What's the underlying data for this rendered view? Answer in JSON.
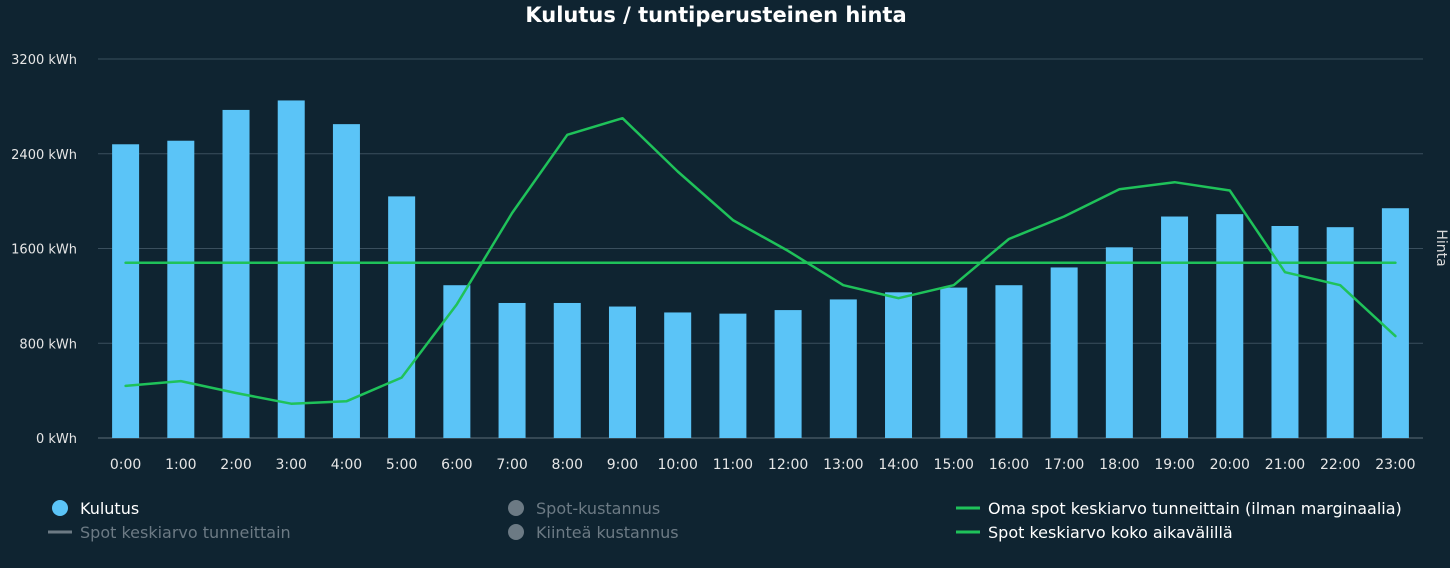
{
  "chart_data": {
    "type": "bar",
    "title": "Kulutus / tuntiperusteinen hinta",
    "xlabel": "",
    "ylabel": "",
    "y2label": "Hinta",
    "ylim": [
      0,
      3200
    ],
    "yticks": [
      0,
      800,
      1600,
      2400,
      3200
    ],
    "yticklabels": [
      "0 kWh",
      "800 kWh",
      "1600 kWh",
      "2400 kWh",
      "3200 kWh"
    ],
    "categories": [
      "0:00",
      "1:00",
      "2:00",
      "3:00",
      "4:00",
      "5:00",
      "6:00",
      "7:00",
      "8:00",
      "9:00",
      "10:00",
      "11:00",
      "12:00",
      "13:00",
      "14:00",
      "15:00",
      "16:00",
      "17:00",
      "18:00",
      "19:00",
      "20:00",
      "21:00",
      "22:00",
      "23:00"
    ],
    "series": [
      {
        "name": "Kulutus",
        "type": "bar",
        "color": "#5bc4f7",
        "values": [
          2480,
          2510,
          2770,
          2850,
          2650,
          2040,
          1290,
          1140,
          1140,
          1110,
          1060,
          1050,
          1080,
          1170,
          1230,
          1270,
          1290,
          1440,
          1610,
          1870,
          1890,
          1790,
          1780,
          1940
        ]
      },
      {
        "name": "Oma spot keskiarvo tunneittain (ilman marginaalia)",
        "type": "line",
        "color": "#1fc25a",
        "values": [
          440,
          480,
          380,
          290,
          310,
          510,
          1130,
          1900,
          2560,
          2700,
          2250,
          1840,
          1580,
          1290,
          1180,
          1290,
          1680,
          1870,
          2100,
          2160,
          2090,
          1400,
          1290,
          860
        ]
      },
      {
        "name": "Spot keskiarvo koko aikavälillä",
        "type": "line",
        "color": "#1fc25a",
        "values": [
          1480,
          1480,
          1480,
          1480,
          1480,
          1480,
          1480,
          1480,
          1480,
          1480,
          1480,
          1480,
          1480,
          1480,
          1480,
          1480,
          1480,
          1480,
          1480,
          1480,
          1480,
          1480,
          1480,
          1480
        ]
      }
    ],
    "legend": [
      {
        "label": "Kulutus",
        "symbol": "circle",
        "color": "#5bc4f7",
        "active": true
      },
      {
        "label": "Spot keskiarvo tunneittain",
        "symbol": "line",
        "color": "#6c7a84",
        "active": false
      },
      {
        "label": "Spot-kustannus",
        "symbol": "circle",
        "color": "#6c7a84",
        "active": false
      },
      {
        "label": "Kiinteä kustannus",
        "symbol": "circle",
        "color": "#6c7a84",
        "active": false
      },
      {
        "label": "Oma spot keskiarvo tunneittain (ilman marginaalia)",
        "symbol": "line",
        "color": "#1fc25a",
        "active": true
      },
      {
        "label": "Spot keskiarvo koko aikavälillä",
        "symbol": "line",
        "color": "#1fc25a",
        "active": true
      }
    ],
    "legend_position": "bottom"
  }
}
